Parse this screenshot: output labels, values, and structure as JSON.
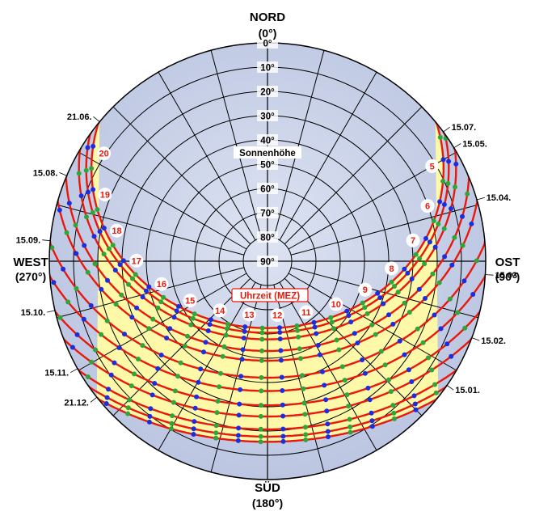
{
  "chart_data": {
    "type": "polar-sunpath",
    "colors": {
      "sky": "#c5cde6",
      "band": "#fdf9a8",
      "grid": "#000000",
      "sun_path": "#e8190c",
      "dot_full_hour": "#1a2ee0",
      "dot_half_hour": "#2ea63a",
      "hour_label": "#e8190c"
    },
    "compass": {
      "north": {
        "name": "NORD",
        "deg": "(0°)"
      },
      "east": {
        "name": "OST",
        "deg": "(90°)"
      },
      "south": {
        "name": "SÜD",
        "deg": "(180°)"
      },
      "west": {
        "name": "WEST",
        "deg": "(270°)"
      }
    },
    "altitude_title": "Sonnenhöhe",
    "time_title": "Uhrzeit (MEZ)",
    "altitude_ticks": [
      "0°",
      "10°",
      "20°",
      "30°",
      "40°",
      "50°",
      "60°",
      "70°",
      "80°",
      "90°"
    ],
    "azimuth_step_deg": 15,
    "latitude_deg": 51,
    "date_labels": {
      "west": [
        "21.06.",
        "15.08.",
        "15.09.",
        "15.10.",
        "15.11.",
        "21.12."
      ],
      "east": [
        "15.07.",
        "15.05.",
        "15.04.",
        "15.03.",
        "15.02.",
        "15.01."
      ]
    },
    "hour_labels": [
      "5",
      "6",
      "7",
      "8",
      "9",
      "10",
      "11",
      "12",
      "13",
      "14",
      "15",
      "16",
      "17",
      "18",
      "19",
      "20"
    ],
    "declinations_deg": [
      23.44,
      21.5,
      18.8,
      14.0,
      10.0,
      3.0,
      -2.5,
      -8.4,
      -13.0,
      -18.3,
      -21.3,
      -23.44
    ],
    "band_declination_range_deg": [
      -23.44,
      23.44
    ],
    "noon_hour_mez": 12.35
  }
}
